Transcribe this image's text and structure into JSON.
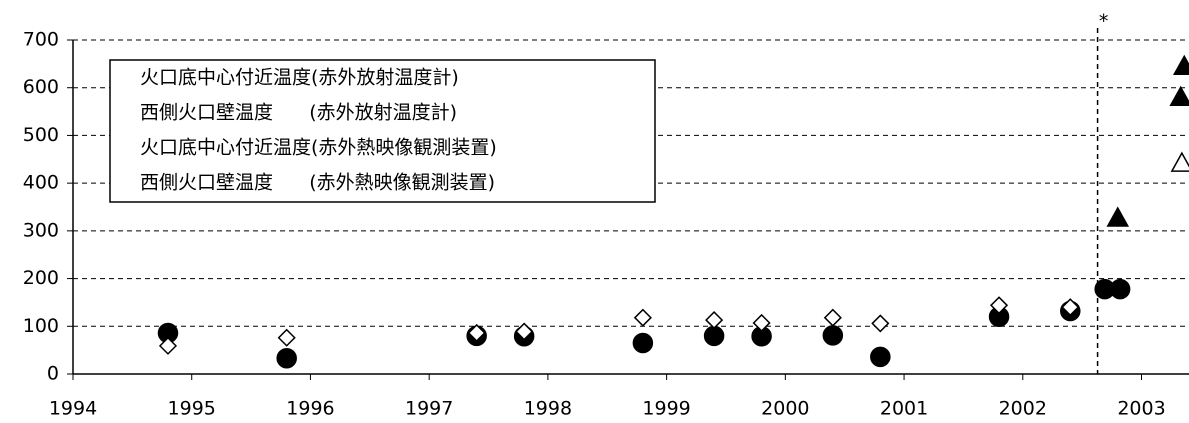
{
  "chart_data": {
    "type": "scatter",
    "xlim": [
      1994,
      2003.4
    ],
    "xticks": [
      1994,
      1995,
      1996,
      1997,
      1998,
      1999,
      2000,
      2001,
      2002,
      2003
    ],
    "ylim": [
      0,
      700
    ],
    "yticks": [
      0,
      100,
      200,
      300,
      400,
      500,
      600,
      700
    ],
    "grid": true,
    "legend": "upper left",
    "annotation": {
      "x": 2002.63,
      "label": "*"
    },
    "series": [
      {
        "name": "火口底中心付近温度(赤外放射温度計)",
        "color": "#000000",
        "marker": "circle",
        "filled": true,
        "x": [
          1994.8,
          1995.8,
          1997.4,
          1997.8,
          1998.8,
          1999.4,
          1999.8,
          2000.4,
          2000.8,
          2001.8,
          2002.4,
          2002.69,
          2002.82
        ],
        "values": [
          86,
          33,
          80,
          79,
          65,
          80,
          79,
          81,
          36,
          120,
          132,
          178,
          178
        ]
      },
      {
        "name": "西側火口壁温度      (赤外放射温度計)",
        "color": "#000000",
        "marker": "diamond",
        "filled": false,
        "x": [
          1994.8,
          1995.8,
          1997.4,
          1997.8,
          1998.8,
          1999.4,
          1999.8,
          2000.4,
          2000.8,
          2001.8,
          2002.4
        ],
        "values": [
          59,
          76,
          86,
          89,
          118,
          113,
          107,
          118,
          106,
          144,
          140
        ]
      },
      {
        "name": "火口底中心付近温度(赤外熱映像観測装置)",
        "color": "#000000",
        "marker": "triangle",
        "filled": true,
        "x": [
          2002.8,
          2003.33,
          2003.36
        ],
        "values": [
          327,
          580,
          645
        ]
      },
      {
        "name": "西側火口壁温度      (赤外熱映像観測装置)",
        "color": "#000000",
        "marker": "triangle",
        "filled": false,
        "x": [
          2003.34
        ],
        "values": [
          442
        ]
      }
    ]
  }
}
